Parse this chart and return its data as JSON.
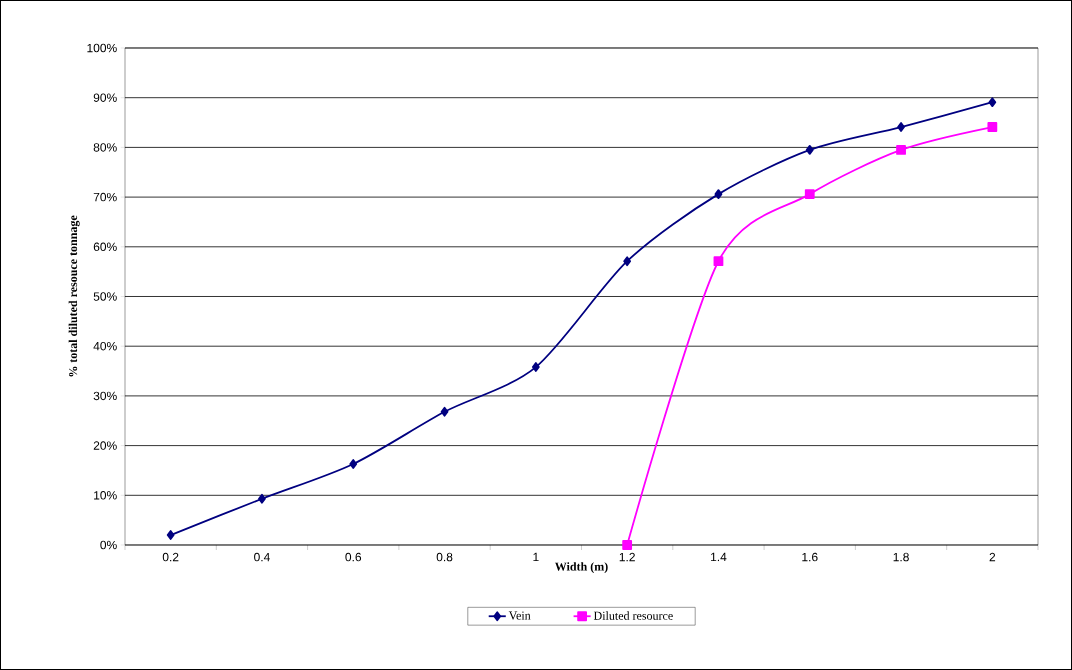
{
  "chart_data": {
    "type": "line",
    "xlabel": "Width (m)",
    "ylabel": "% total diluted resouce tonnage",
    "categories": [
      "0.2",
      "0.4",
      "0.6",
      "0.8",
      "1",
      "1.2",
      "1.4",
      "1.6",
      "1.8",
      "2"
    ],
    "series": [
      {
        "name": "Vein",
        "color": "#000080",
        "marker": "diamond",
        "values": [
          2.0,
          9.3,
          16.3,
          26.8,
          35.8,
          57.1,
          70.6,
          79.5,
          84.1,
          89.1
        ]
      },
      {
        "name": "Diluted resource",
        "color": "#ff00ff",
        "marker": "square",
        "values": [
          null,
          null,
          null,
          null,
          null,
          0,
          57.1,
          70.6,
          79.5,
          84.1
        ]
      }
    ],
    "ylim": [
      0,
      100
    ],
    "yticks": [
      {
        "value": 0,
        "label": "0%"
      },
      {
        "value": 10,
        "label": "10%"
      },
      {
        "value": 20,
        "label": "20%"
      },
      {
        "value": 30,
        "label": "30%"
      },
      {
        "value": 40,
        "label": "40%"
      },
      {
        "value": 50,
        "label": "50%"
      },
      {
        "value": 60,
        "label": "60%"
      },
      {
        "value": 70,
        "label": "70%"
      },
      {
        "value": 80,
        "label": "80%"
      },
      {
        "value": 90,
        "label": "90%"
      },
      {
        "value": 100,
        "label": "100%"
      }
    ],
    "grid": "y",
    "legend": "bottom"
  }
}
